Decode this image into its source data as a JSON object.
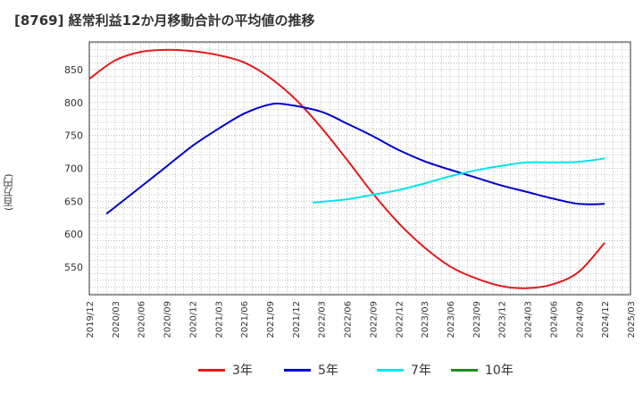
{
  "chart_data": {
    "type": "line",
    "title": "[8769]  経常利益12か月移動合計の平均値の推移",
    "ylabel": "(百万円)",
    "xlabel": "",
    "ylim": [
      508,
      892
    ],
    "yticks": [
      550,
      600,
      650,
      700,
      750,
      800,
      850
    ],
    "x_range": [
      "2019-12",
      "2025-03"
    ],
    "xticks": [
      "2019/12",
      "2020/03",
      "2020/06",
      "2020/09",
      "2020/12",
      "2021/03",
      "2021/06",
      "2021/09",
      "2021/12",
      "2022/03",
      "2022/06",
      "2022/09",
      "2022/12",
      "2023/03",
      "2023/06",
      "2023/09",
      "2023/12",
      "2024/03",
      "2024/06",
      "2024/09",
      "2024/12",
      "2025/03"
    ],
    "grid": true,
    "legend_position": "bottom",
    "series": [
      {
        "name": "3年",
        "color": "#e41a1c",
        "points": [
          [
            "2019-12",
            836
          ],
          [
            "2020-03",
            864
          ],
          [
            "2020-06",
            877
          ],
          [
            "2020-09",
            880
          ],
          [
            "2020-12",
            878
          ],
          [
            "2021-03",
            872
          ],
          [
            "2021-06",
            861
          ],
          [
            "2021-09",
            838
          ],
          [
            "2021-12",
            805
          ],
          [
            "2022-03",
            762
          ],
          [
            "2022-06",
            713
          ],
          [
            "2022-09",
            662
          ],
          [
            "2022-12",
            617
          ],
          [
            "2023-03",
            580
          ],
          [
            "2023-06",
            551
          ],
          [
            "2023-09",
            533
          ],
          [
            "2023-12",
            521
          ],
          [
            "2024-03",
            518
          ],
          [
            "2024-06",
            524
          ],
          [
            "2024-09",
            543
          ],
          [
            "2024-12",
            587
          ]
        ]
      },
      {
        "name": "5年",
        "color": "#0000cc",
        "points": [
          [
            "2020-02",
            631
          ],
          [
            "2020-06",
            672
          ],
          [
            "2020-09",
            703
          ],
          [
            "2020-12",
            734
          ],
          [
            "2021-03",
            760
          ],
          [
            "2021-06",
            783
          ],
          [
            "2021-09",
            797
          ],
          [
            "2021-11",
            797
          ],
          [
            "2022-03",
            786
          ],
          [
            "2022-06",
            768
          ],
          [
            "2022-09",
            749
          ],
          [
            "2022-12",
            728
          ],
          [
            "2023-03",
            711
          ],
          [
            "2023-06",
            698
          ],
          [
            "2023-09",
            686
          ],
          [
            "2023-12",
            674
          ],
          [
            "2024-03",
            664
          ],
          [
            "2024-06",
            654
          ],
          [
            "2024-09",
            646
          ],
          [
            "2024-12",
            646
          ]
        ]
      },
      {
        "name": "7年",
        "color": "#00e5ee",
        "points": [
          [
            "2022-02",
            648
          ],
          [
            "2022-06",
            653
          ],
          [
            "2022-09",
            660
          ],
          [
            "2022-12",
            667
          ],
          [
            "2023-03",
            677
          ],
          [
            "2023-06",
            688
          ],
          [
            "2023-09",
            697
          ],
          [
            "2023-12",
            704
          ],
          [
            "2024-03",
            709
          ],
          [
            "2024-06",
            709
          ],
          [
            "2024-09",
            710
          ],
          [
            "2024-12",
            715
          ]
        ]
      },
      {
        "name": "10年",
        "color": "#228b22",
        "points": []
      }
    ]
  }
}
